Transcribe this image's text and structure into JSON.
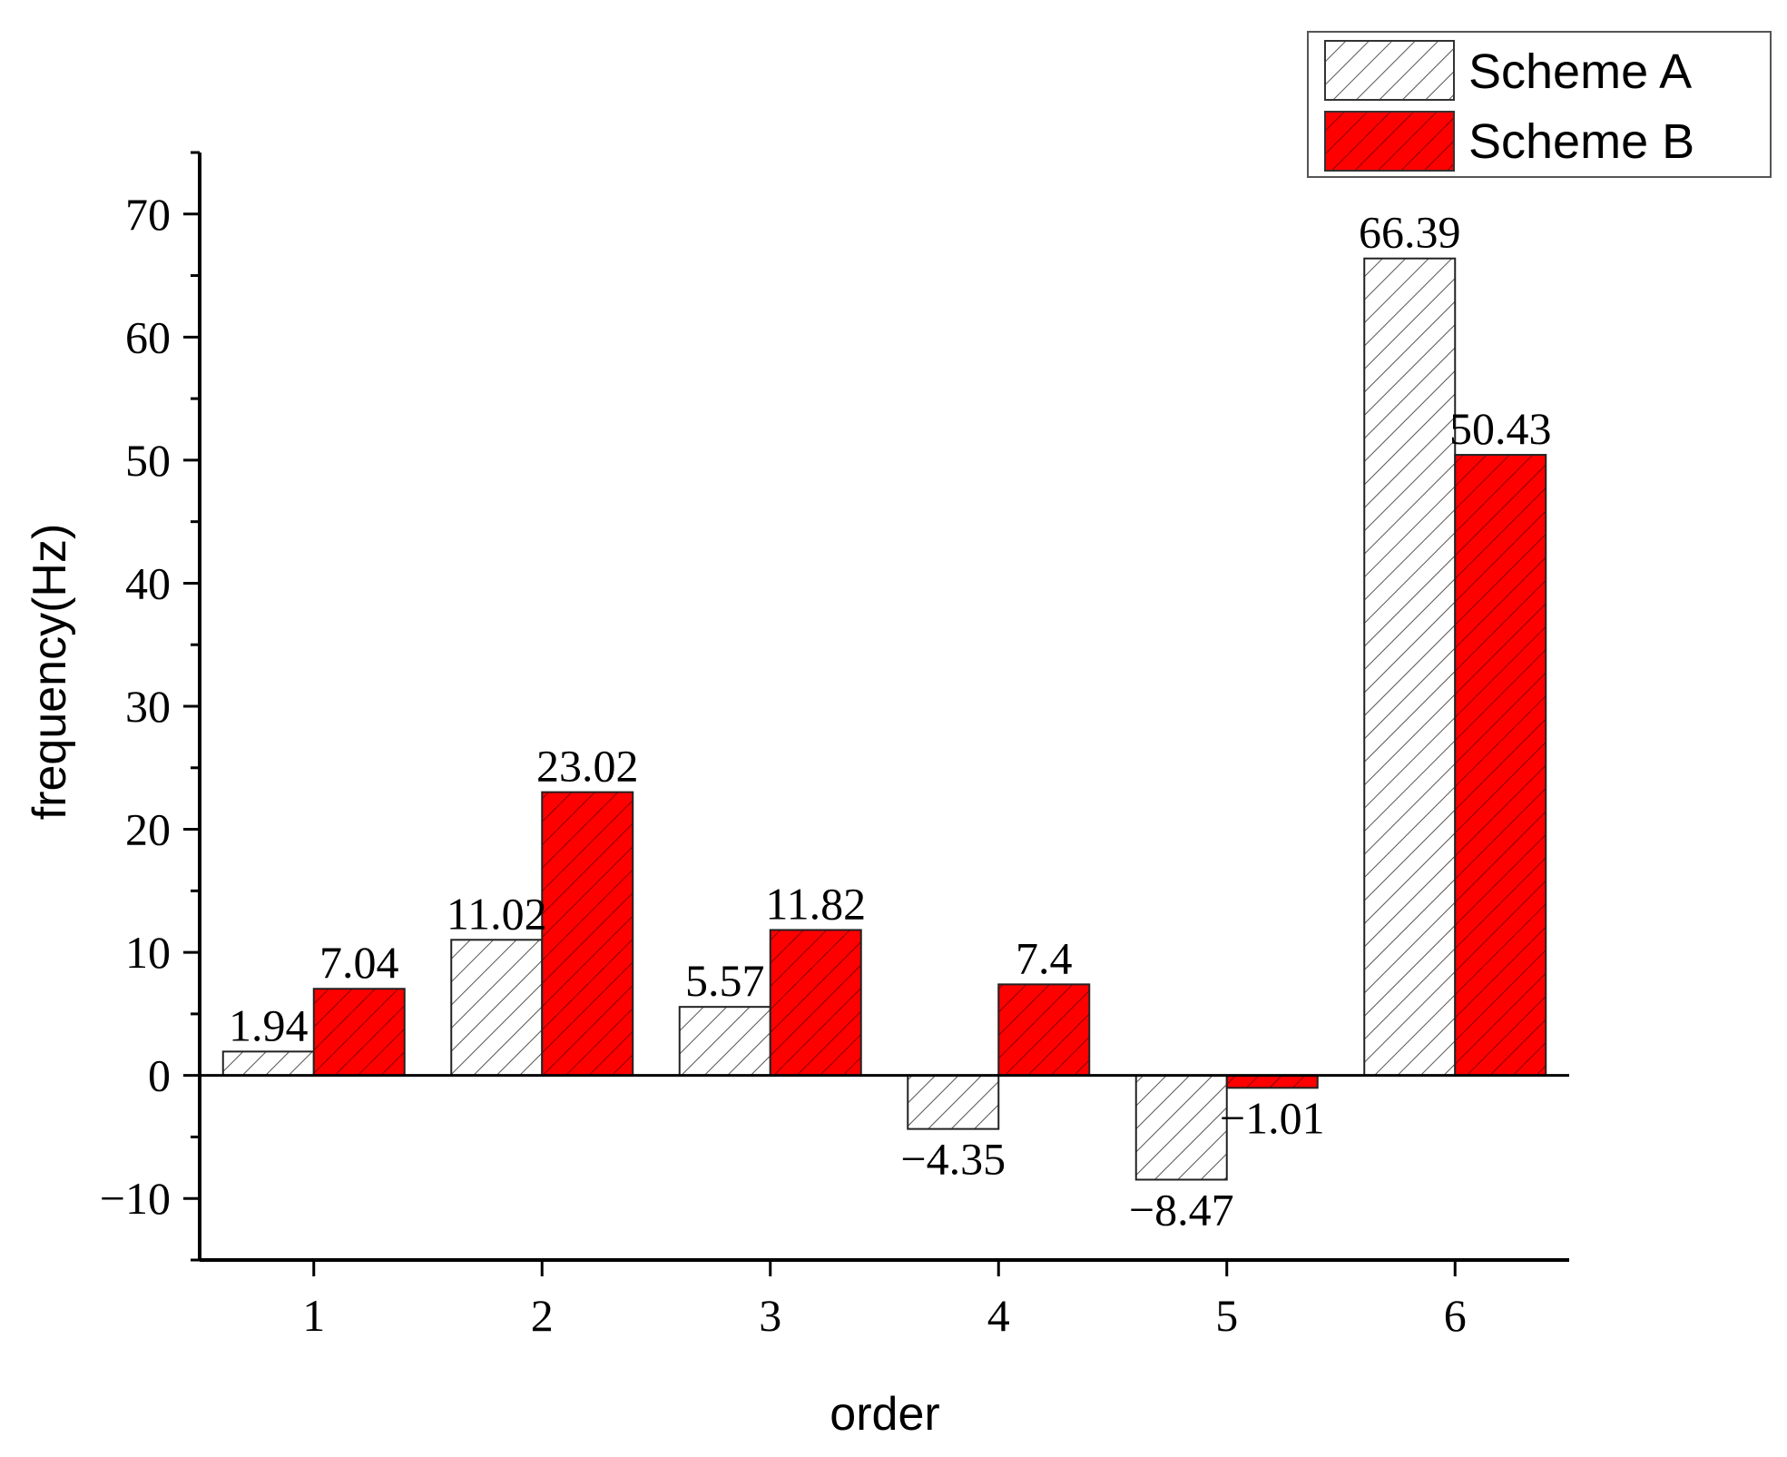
{
  "chart_data": {
    "type": "bar",
    "categories": [
      "1",
      "2",
      "3",
      "4",
      "5",
      "6"
    ],
    "series": [
      {
        "name": "Scheme A",
        "values": [
          1.94,
          11.02,
          5.57,
          -4.35,
          -8.47,
          66.39
        ],
        "labels": [
          "1.94",
          "11.02",
          "5.57",
          "−4.35",
          "−8.47",
          "66.39"
        ],
        "color": "#ffffff",
        "hatch_color": "#555555"
      },
      {
        "name": "Scheme B",
        "values": [
          7.04,
          23.02,
          11.82,
          7.4,
          -1.01,
          50.43
        ],
        "labels": [
          "7.04",
          "23.02",
          "11.82",
          "7.4",
          "−1.01",
          "50.43"
        ],
        "color": "#ff0000",
        "hatch_color": "#8b0000"
      }
    ],
    "xlabel": "order",
    "ylabel": "frequency(Hz)",
    "ylim": [
      -15,
      75
    ],
    "yticks": [
      -10,
      0,
      10,
      20,
      30,
      40,
      50,
      60,
      70
    ],
    "ytick_labels": [
      "−10",
      "0",
      "10",
      "20",
      "30",
      "40",
      "50",
      "60",
      "70"
    ],
    "grid": false,
    "legend": "top-right, outside plot area"
  }
}
